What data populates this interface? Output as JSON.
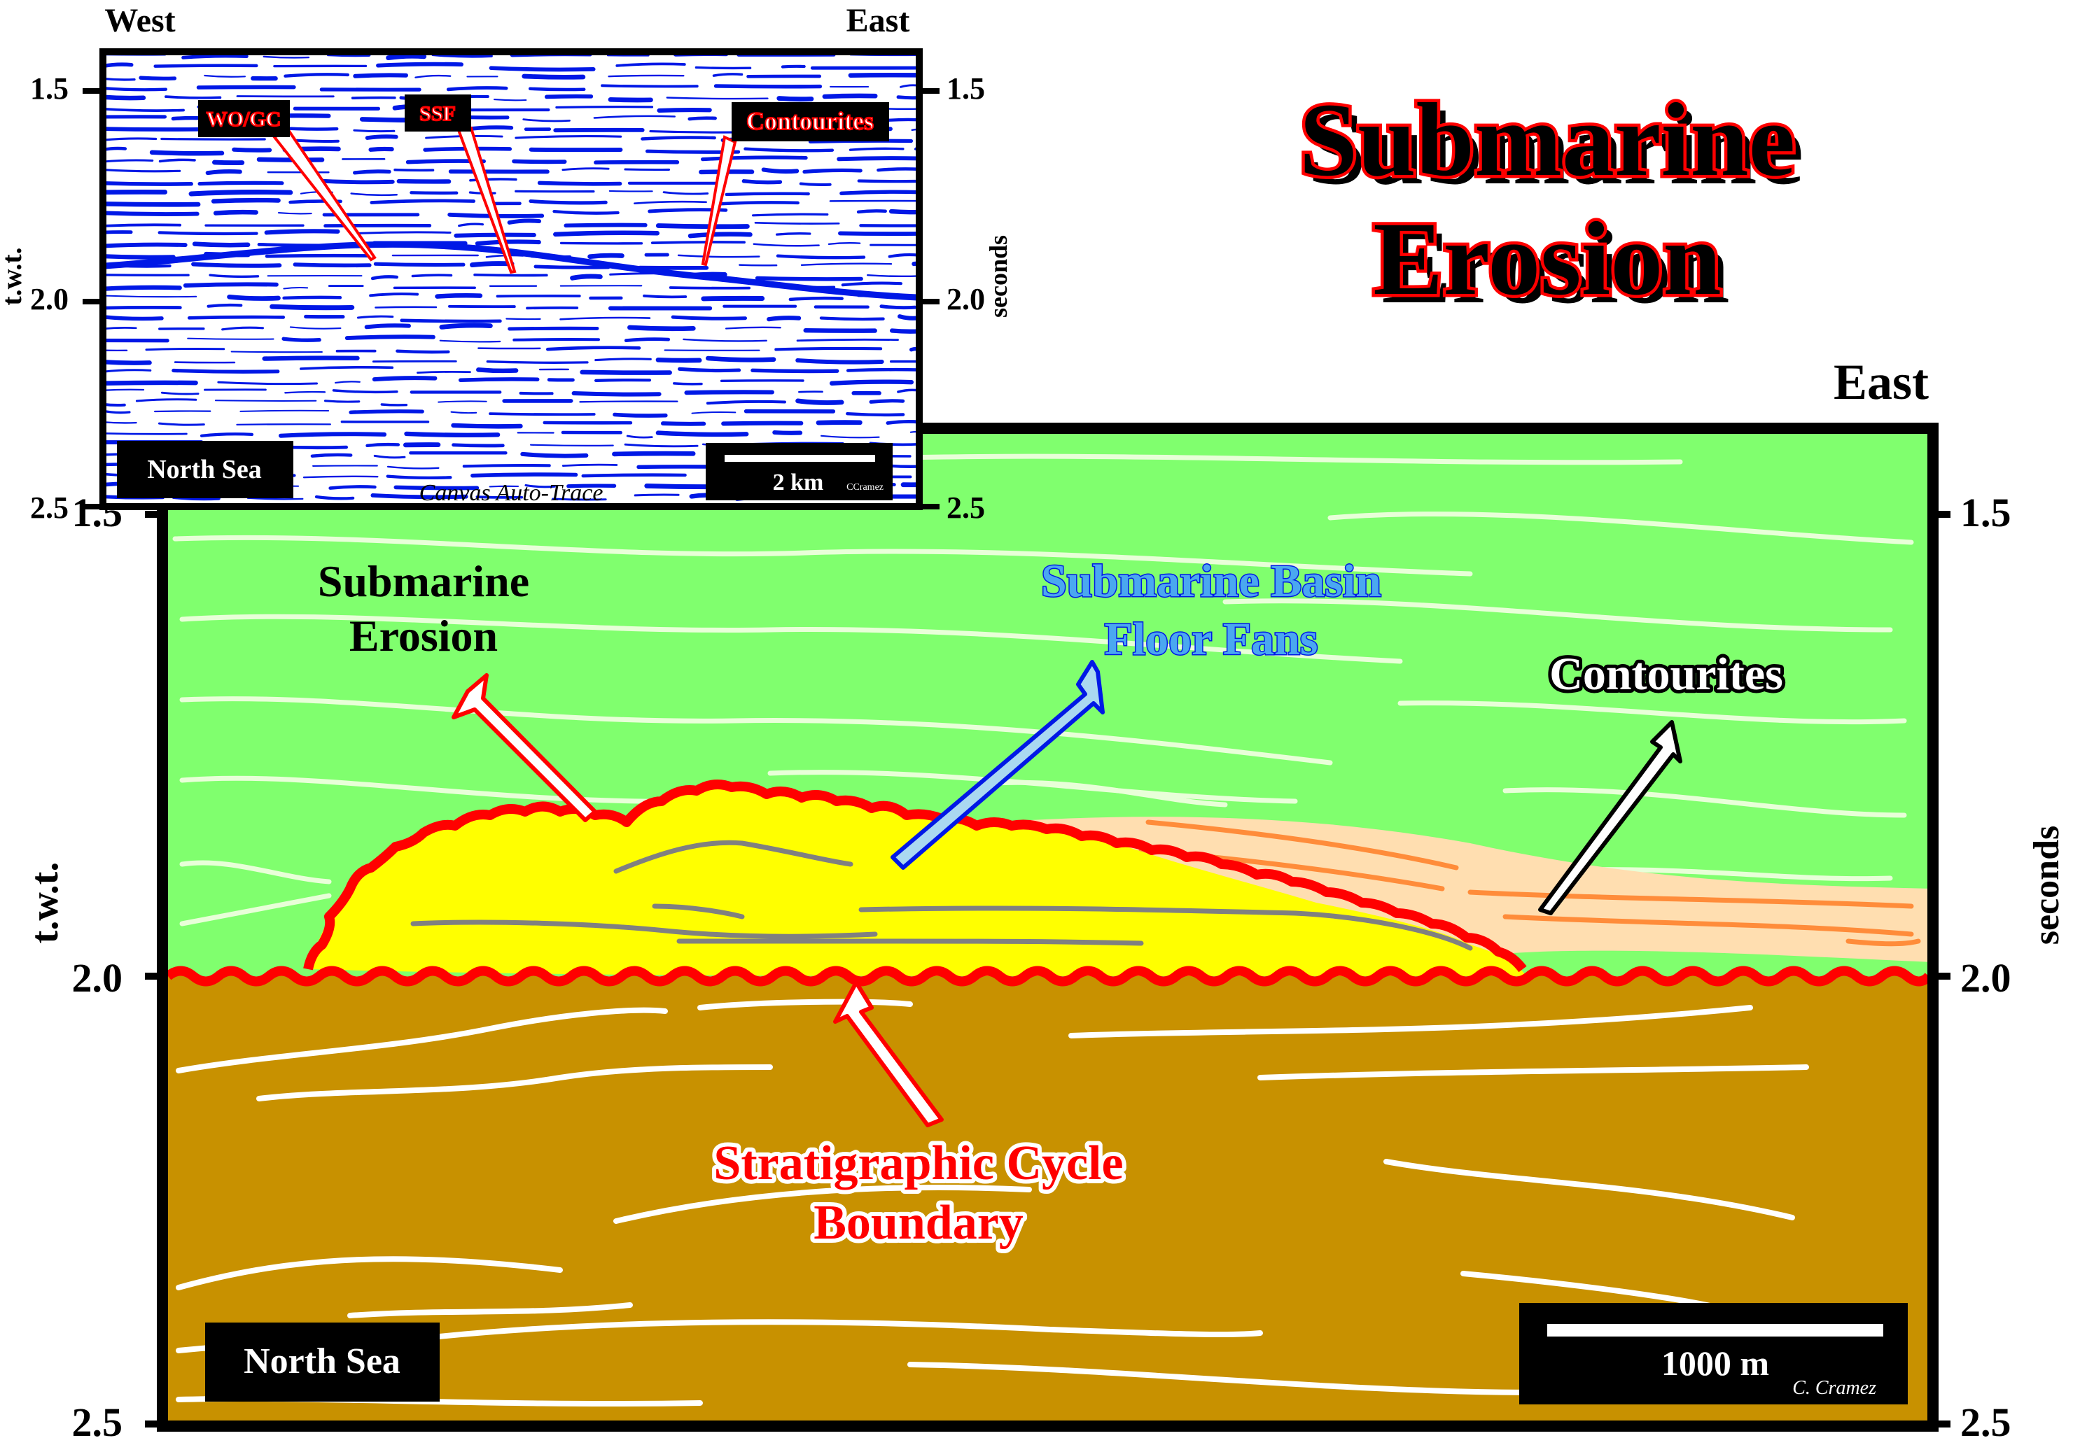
{
  "title": {
    "line1": "Submarine",
    "line2": "Erosion"
  },
  "inset": {
    "west": "West",
    "east": "East",
    "axis_left_ticks": [
      "1.5",
      "2.0",
      "2.5"
    ],
    "axis_right_ticks": [
      "1.5",
      "2.0",
      "2.5"
    ],
    "axis_left_label": "t.w.t.",
    "axis_right_label": "seconds",
    "callouts": [
      "WO/GC",
      "SSF",
      "Contourites"
    ],
    "region": "North Sea",
    "caption": "Canvas Auto-Trace",
    "scale": "2 km",
    "credit": "CCramez"
  },
  "main": {
    "east": "East",
    "axis_left_ticks": [
      "1.5",
      "2.0",
      "2.5"
    ],
    "axis_right_ticks": [
      "1.5",
      "2.0",
      "2.5"
    ],
    "axis_left_label": "t.w.t.",
    "axis_right_label": "seconds",
    "labels": {
      "erosion_line1": "Submarine",
      "erosion_line2": "Erosion",
      "fans_line1": "Submarine Basin",
      "fans_line2": "Floor Fans",
      "contourites": "Contourites",
      "boundary_line1": "Stratigraphic Cycle",
      "boundary_line2": "Boundary"
    },
    "region": "North Sea",
    "scale": "1000 m",
    "credit": "C. Cramez"
  },
  "colors": {
    "upper_layer": "#80ff6e",
    "lower_layer": "#c89100",
    "fan": "#ffff00",
    "contourite": "#ffdeb0",
    "unconformity": "#ff0000",
    "seismic": "#0018e6",
    "fan_arrow": "#aad8f0",
    "fan_text": "#4aa8f0"
  }
}
